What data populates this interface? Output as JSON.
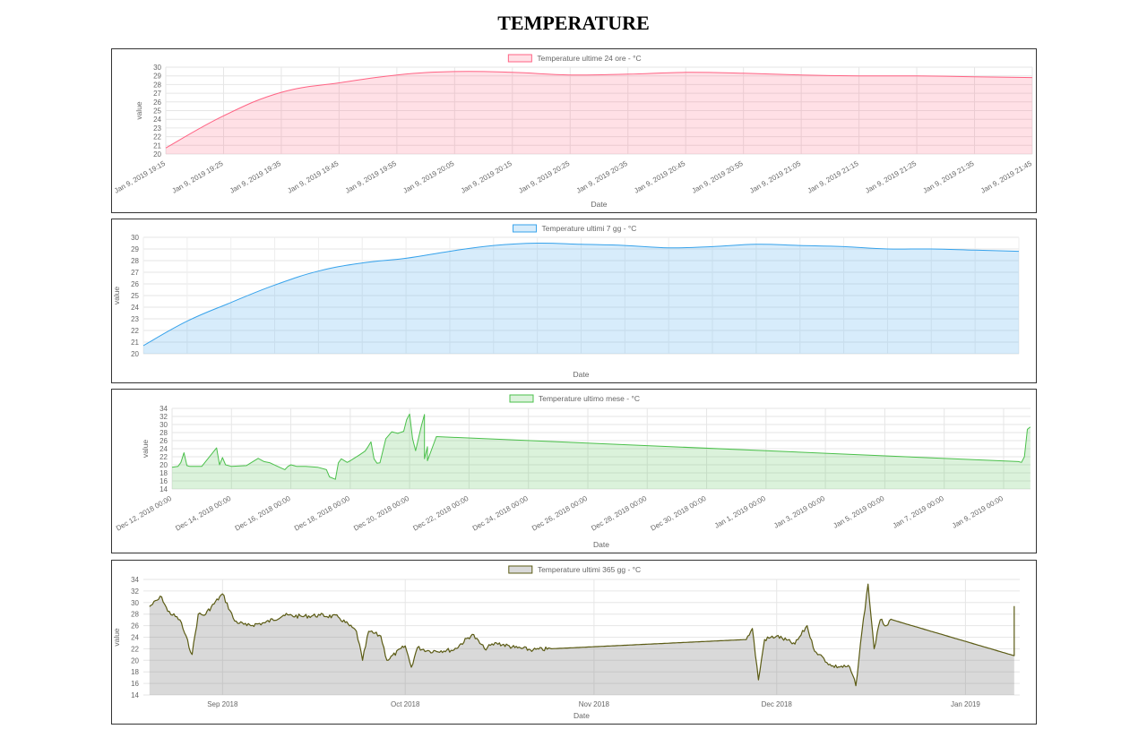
{
  "page": {
    "title": "TEMPERATURE"
  },
  "chart_data": [
    {
      "type": "area",
      "legend": "Temperature ultime 24 ore - °C",
      "legend_position": "top",
      "xlabel": "Date",
      "ylabel": "value",
      "ylim": [
        20,
        30
      ],
      "yticks": [
        20,
        21,
        22,
        23,
        24,
        25,
        26,
        27,
        28,
        29,
        30
      ],
      "grid": true,
      "x_tick_labels": [
        "Jan 9, 2019 19:15",
        "Jan 9, 2019 19:25",
        "Jan 9, 2019 19:35",
        "Jan 9, 2019 19:45",
        "Jan 9, 2019 19:55",
        "Jan 9, 2019 20:05",
        "Jan 9, 2019 20:15",
        "Jan 9, 2019 20:25",
        "Jan 9, 2019 20:35",
        "Jan 9, 2019 20:45",
        "Jan 9, 2019 20:55",
        "Jan 9, 2019 21:05",
        "Jan 9, 2019 21:15",
        "Jan 9, 2019 21:25",
        "Jan 9, 2019 21:35",
        "Jan 9, 2019 21:45"
      ],
      "x": [
        "Jan 9, 2019 19:15",
        "Jan 9, 2019 19:25",
        "Jan 9, 2019 19:35",
        "Jan 9, 2019 19:45",
        "Jan 9, 2019 19:55",
        "Jan 9, 2019 20:05",
        "Jan 9, 2019 20:15",
        "Jan 9, 2019 20:25",
        "Jan 9, 2019 20:35",
        "Jan 9, 2019 20:45",
        "Jan 9, 2019 20:55",
        "Jan 9, 2019 21:05",
        "Jan 9, 2019 21:15",
        "Jan 9, 2019 21:25",
        "Jan 9, 2019 21:35",
        "Jan 9, 2019 21:45"
      ],
      "values": [
        20.7,
        24.4,
        27.1,
        28.2,
        29.1,
        29.5,
        29.4,
        29.1,
        29.2,
        29.4,
        29.3,
        29.1,
        29.0,
        29.0,
        28.9,
        28.8
      ],
      "line_color": "#ff6384",
      "fill_color": "rgba(255,99,132,0.2)"
    },
    {
      "type": "area",
      "legend": "Temperature ultimi 7 gg - °C",
      "legend_position": "top",
      "xlabel": "Date",
      "ylabel": "value",
      "ylim": [
        20,
        30
      ],
      "yticks": [
        20,
        21,
        22,
        23,
        24,
        25,
        26,
        27,
        28,
        29,
        30
      ],
      "grid": true,
      "x_tick_labels": [],
      "x": [
        0,
        0.05,
        0.1,
        0.15,
        0.2,
        0.25,
        0.3,
        0.35,
        0.4,
        0.45,
        0.5,
        0.55,
        0.6,
        0.65,
        0.7,
        0.75,
        0.8,
        0.85,
        0.9,
        0.95,
        1
      ],
      "values": [
        20.7,
        22.8,
        24.4,
        25.9,
        27.1,
        27.8,
        28.2,
        28.8,
        29.3,
        29.5,
        29.4,
        29.3,
        29.1,
        29.2,
        29.4,
        29.3,
        29.2,
        29.0,
        29.0,
        28.9,
        28.8
      ],
      "line_color": "#36a2eb",
      "fill_color": "rgba(54,162,235,0.2)"
    },
    {
      "type": "area",
      "legend": "Temperature ultimo mese - °C",
      "legend_position": "top",
      "xlabel": "Date",
      "ylabel": "value",
      "ylim": [
        14,
        34
      ],
      "yticks": [
        14,
        16,
        18,
        20,
        22,
        24,
        26,
        28,
        30,
        32,
        34
      ],
      "grid": true,
      "x_tick_labels": [
        "Dec 12, 2018 00:00",
        "Dec 14, 2018 00:00",
        "Dec 16, 2018 00:00",
        "Dec 18, 2018 00:00",
        "Dec 20, 2018 00:00",
        "Dec 22, 2018 00:00",
        "Dec 24, 2018 00:00",
        "Dec 26, 2018 00:00",
        "Dec 28, 2018 00:00",
        "Dec 30, 2018 00:00",
        "Jan 1, 2019 00:00",
        "Jan 3, 2019 00:00",
        "Jan 5, 2019 00:00",
        "Jan 7, 2019 00:00",
        "Jan 9, 2019 00:00"
      ],
      "x_dates": [
        "2018-12-12T00:00",
        "2018-12-12T04:48",
        "2018-12-12T07:12",
        "2018-12-12T09:36",
        "2018-12-12T12:00",
        "2018-12-12T14:24",
        "2018-12-13T00:00",
        "2018-12-13T12:00",
        "2018-12-13T14:24",
        "2018-12-13T16:48",
        "2018-12-13T19:12",
        "2018-12-14T00:00",
        "2018-12-14T12:00",
        "2018-12-14T21:36",
        "2018-12-15T02:24",
        "2018-12-15T07:12",
        "2018-12-15T12:00",
        "2018-12-15T19:12",
        "2018-12-15T21:36",
        "2018-12-16T00:00",
        "2018-12-16T02:24",
        "2018-12-16T04:48",
        "2018-12-16T12:00",
        "2018-12-16T21:36",
        "2018-12-17T04:48",
        "2018-12-17T07:12",
        "2018-12-17T12:00",
        "2018-12-17T14:24",
        "2018-12-17T16:48",
        "2018-12-17T21:36",
        "2018-12-18T00:00",
        "2018-12-18T02:24",
        "2018-12-18T07:12",
        "2018-12-18T12:00",
        "2018-12-18T14:24",
        "2018-12-18T16:48",
        "2018-12-18T19:12",
        "2018-12-18T21:36",
        "2018-12-19T00:00",
        "2018-12-19T04:48",
        "2018-12-19T09:36",
        "2018-12-19T14:24",
        "2018-12-19T19:12",
        "2018-12-19T21:36",
        "2018-12-20T00:00",
        "2018-12-20T02:24",
        "2018-12-20T04:48",
        "2018-12-20T09:36",
        "2018-12-20T12:00",
        "2018-12-20T12:00",
        "2018-12-20T12:00",
        "2018-12-20T14:24",
        "2018-12-20T14:24",
        "2018-12-20T14:24",
        "2018-12-20T21:36",
        "2019-01-09T12:00",
        "2019-01-09T14:24",
        "2019-01-09T16:48",
        "2019-01-09T19:12",
        "2019-01-09T21:36"
      ],
      "values": [
        19.4,
        19.6,
        20.6,
        23.0,
        19.8,
        19.6,
        19.6,
        24.2,
        20.0,
        21.8,
        20.0,
        19.6,
        19.8,
        21.6,
        20.8,
        20.5,
        19.8,
        18.8,
        19.6,
        20.0,
        19.8,
        19.6,
        19.6,
        19.4,
        18.8,
        17.0,
        16.4,
        20.5,
        21.5,
        20.6,
        21.0,
        21.5,
        22.4,
        23.4,
        24.5,
        25.7,
        21.5,
        20.4,
        20.5,
        26.5,
        28.2,
        27.8,
        28.3,
        31.2,
        32.6,
        26.5,
        23.5,
        29.8,
        32.5,
        26.7,
        21.5,
        24.5,
        22.8,
        21.0,
        27.0,
        20.8,
        20.6,
        22.0,
        28.8,
        29.4
      ],
      "line_color": "#4bc04b",
      "fill_color": "rgba(75,192,75,0.2)"
    },
    {
      "type": "area",
      "legend": "Temperature ultimi 365 gg - °C",
      "legend_position": "top",
      "xlabel": "Date",
      "ylabel": "value",
      "ylim": [
        14,
        34
      ],
      "yticks": [
        14,
        16,
        18,
        20,
        22,
        24,
        26,
        28,
        30,
        32,
        34
      ],
      "grid": true,
      "x_tick_labels": [
        "Sep 2018",
        "Oct 2018",
        "Nov 2018",
        "Dec 2018",
        "Jan 2019"
      ],
      "x_dates": [
        "2018-08-20",
        "2018-08-22",
        "2018-08-23",
        "2018-08-25",
        "2018-08-27",
        "2018-08-28",
        "2018-08-29",
        "2018-09-01",
        "2018-09-03",
        "2018-09-05",
        "2018-09-08",
        "2018-09-11",
        "2018-09-14",
        "2018-09-17",
        "2018-09-20",
        "2018-09-23",
        "2018-09-24",
        "2018-09-25",
        "2018-09-27",
        "2018-09-28",
        "2018-10-01",
        "2018-10-02",
        "2018-10-03",
        "2018-10-05",
        "2018-10-09",
        "2018-10-12",
        "2018-10-14",
        "2018-10-16",
        "2018-10-19",
        "2018-10-22",
        "2018-10-25",
        "2018-11-26",
        "2018-11-27",
        "2018-11-28",
        "2018-11-29",
        "2018-12-01",
        "2018-12-04",
        "2018-12-06",
        "2018-12-07",
        "2018-12-08",
        "2018-12-10",
        "2018-12-13",
        "2018-12-14",
        "2018-12-15",
        "2018-12-16",
        "2018-12-17",
        "2018-12-18",
        "2018-12-19",
        "2018-12-20",
        "2019-01-09",
        "2019-01-09"
      ],
      "values": [
        29.3,
        31.0,
        28.5,
        27.0,
        21.0,
        28.0,
        27.8,
        31.5,
        26.8,
        26.0,
        26.5,
        27.8,
        27.6,
        27.8,
        27.5,
        25.0,
        20.0,
        25.0,
        24.2,
        20.0,
        22.5,
        18.8,
        22.2,
        21.6,
        21.8,
        24.5,
        22.0,
        23.0,
        22.2,
        21.8,
        22.0,
        23.6,
        25.5,
        16.6,
        23.6,
        24.2,
        22.8,
        26.0,
        22.2,
        21.0,
        19.0,
        18.8,
        15.6,
        25.0,
        33.2,
        22.0,
        27.0,
        26.0,
        27.0,
        20.8,
        29.4
      ],
      "line_color": "#5b5b14",
      "fill_color": "rgba(130,130,130,0.3)"
    }
  ]
}
